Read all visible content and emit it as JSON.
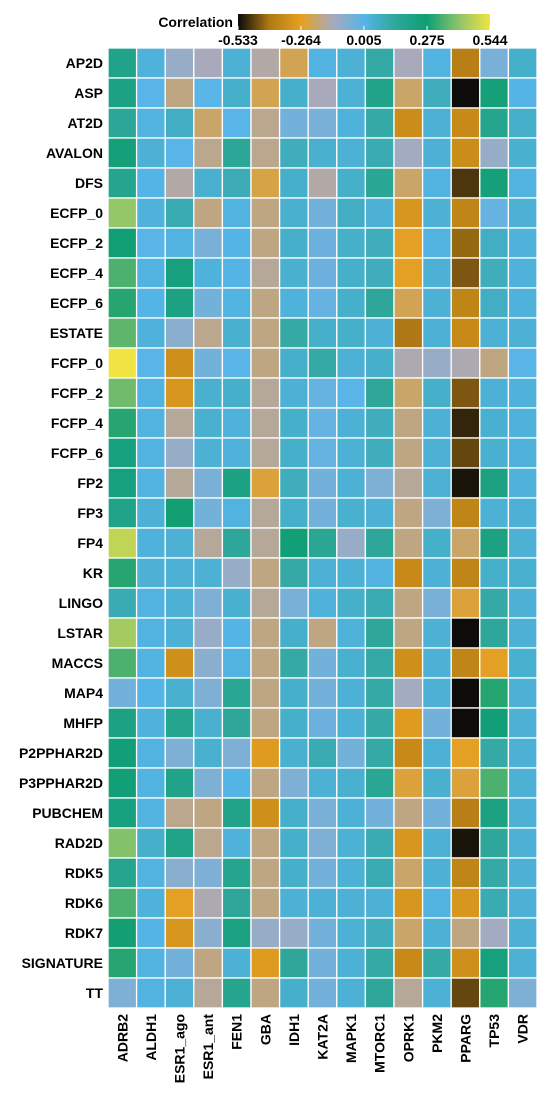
{
  "chart_data": {
    "type": "heatmap",
    "legend_title": "Correlation",
    "legend_ticks": [
      "-0.533",
      "-0.264",
      "0.005",
      "0.275",
      "0.544"
    ],
    "value_range": [
      -0.533,
      0.544
    ],
    "colorscale": [
      "#0a0a0a",
      "#b07a14",
      "#e6a020",
      "#a8aabd",
      "#56b4e9",
      "#2ea79a",
      "#0f9e73",
      "#8cc46a",
      "#f0e442"
    ],
    "rows": [
      "AP2D",
      "ASP",
      "AT2D",
      "AVALON",
      "DFS",
      "ECFP_0",
      "ECFP_2",
      "ECFP_4",
      "ECFP_6",
      "ESTATE",
      "FCFP_0",
      "FCFP_2",
      "FCFP_4",
      "FCFP_6",
      "FP2",
      "FP3",
      "FP4",
      "KR",
      "LINGO",
      "LSTAR",
      "MACCS",
      "MAP4",
      "MHFP",
      "P2PPHAR2D",
      "P3PPHAR2D",
      "PUBCHEM",
      "RAD2D",
      "RDK5",
      "RDK6",
      "RDK7",
      "SIGNATURE",
      "TT"
    ],
    "columns": [
      "ADRB2",
      "ALDH1",
      "ESR1_ago",
      "ESR1_ant",
      "FEN1",
      "GBA",
      "IDH1",
      "KAT2A",
      "MAPK1",
      "MTORC1",
      "OPRK1",
      "PKM2",
      "PPARG",
      "TP53",
      "VDR"
    ],
    "values": [
      [
        0.2,
        0.03,
        -0.1,
        -0.13,
        0.04,
        -0.15,
        -0.22,
        0.02,
        0.04,
        0.12,
        -0.13,
        0.02,
        -0.38,
        -0.05,
        0.06
      ],
      [
        0.22,
        0.0,
        -0.18,
        0.0,
        0.06,
        -0.22,
        0.06,
        -0.13,
        0.04,
        0.2,
        -0.2,
        0.08,
        -0.53,
        0.25,
        0.01
      ],
      [
        0.15,
        0.02,
        0.07,
        -0.2,
        0.0,
        -0.17,
        -0.04,
        -0.05,
        0.03,
        0.12,
        -0.33,
        0.04,
        -0.34,
        0.18,
        0.06
      ],
      [
        0.25,
        0.04,
        0.0,
        -0.17,
        0.15,
        -0.17,
        0.08,
        0.05,
        0.04,
        0.1,
        -0.12,
        0.04,
        -0.33,
        -0.1,
        0.05
      ],
      [
        0.18,
        0.01,
        -0.15,
        0.05,
        0.09,
        -0.23,
        0.06,
        -0.15,
        0.06,
        0.16,
        -0.2,
        0.02,
        -0.48,
        0.25,
        0.02
      ],
      [
        0.42,
        0.03,
        0.1,
        -0.18,
        0.02,
        -0.18,
        0.05,
        -0.04,
        0.07,
        0.04,
        -0.3,
        0.04,
        -0.36,
        -0.02,
        0.04
      ],
      [
        0.27,
        0.0,
        0.02,
        -0.05,
        0.01,
        -0.18,
        0.06,
        -0.03,
        0.06,
        0.08,
        -0.26,
        0.02,
        -0.42,
        0.07,
        0.03
      ],
      [
        0.34,
        0.02,
        0.24,
        0.03,
        0.01,
        -0.16,
        0.05,
        -0.03,
        0.06,
        0.08,
        -0.26,
        0.04,
        -0.44,
        0.08,
        0.03
      ],
      [
        0.3,
        0.01,
        0.22,
        -0.04,
        0.02,
        -0.18,
        0.03,
        -0.02,
        0.06,
        0.14,
        -0.22,
        0.04,
        -0.36,
        0.07,
        0.03
      ],
      [
        0.36,
        0.03,
        -0.08,
        -0.17,
        0.05,
        -0.18,
        0.12,
        0.06,
        0.06,
        0.04,
        -0.4,
        0.04,
        -0.34,
        0.04,
        0.04
      ],
      [
        0.544,
        0.0,
        -0.32,
        -0.04,
        0.0,
        -0.18,
        0.06,
        0.12,
        0.04,
        0.06,
        -0.14,
        -0.1,
        -0.14,
        -0.18,
        0.0
      ],
      [
        0.38,
        0.02,
        -0.3,
        0.05,
        0.06,
        -0.16,
        0.04,
        -0.02,
        0.0,
        0.14,
        -0.2,
        0.06,
        -0.44,
        0.04,
        0.03
      ],
      [
        0.3,
        0.02,
        -0.16,
        0.05,
        0.03,
        -0.16,
        0.06,
        -0.02,
        0.04,
        0.08,
        -0.18,
        0.04,
        -0.5,
        0.05,
        0.03
      ],
      [
        0.24,
        0.02,
        -0.1,
        0.04,
        0.03,
        -0.16,
        0.06,
        -0.02,
        0.04,
        0.08,
        -0.18,
        0.04,
        -0.46,
        0.05,
        0.03
      ],
      [
        0.24,
        0.02,
        -0.16,
        -0.05,
        0.22,
        -0.24,
        0.08,
        -0.04,
        0.04,
        -0.06,
        -0.16,
        0.04,
        -0.52,
        0.22,
        0.03
      ],
      [
        0.2,
        0.04,
        0.28,
        -0.04,
        0.02,
        -0.16,
        0.06,
        -0.04,
        0.05,
        0.04,
        -0.18,
        -0.06,
        -0.36,
        0.04,
        0.04
      ],
      [
        0.48,
        0.03,
        0.04,
        -0.16,
        0.14,
        -0.16,
        0.26,
        0.16,
        -0.1,
        0.14,
        -0.18,
        0.06,
        -0.2,
        0.22,
        0.04
      ],
      [
        0.3,
        0.04,
        0.04,
        0.04,
        -0.1,
        -0.18,
        0.12,
        0.04,
        0.04,
        0.02,
        -0.34,
        0.04,
        -0.36,
        0.06,
        0.05
      ],
      [
        0.1,
        0.02,
        0.04,
        -0.06,
        0.05,
        -0.16,
        -0.05,
        0.03,
        0.06,
        0.1,
        -0.18,
        -0.05,
        -0.24,
        0.12,
        0.04
      ],
      [
        0.44,
        0.02,
        0.04,
        -0.1,
        0.01,
        -0.18,
        0.06,
        -0.18,
        0.03,
        0.14,
        -0.18,
        0.04,
        -0.53,
        0.14,
        0.04
      ],
      [
        0.34,
        0.02,
        -0.32,
        -0.08,
        0.02,
        -0.18,
        0.12,
        -0.04,
        0.05,
        0.12,
        -0.32,
        0.04,
        -0.36,
        -0.26,
        0.05
      ],
      [
        -0.04,
        0.01,
        0.05,
        -0.06,
        0.16,
        -0.18,
        0.06,
        -0.04,
        0.04,
        0.12,
        -0.12,
        0.04,
        -0.53,
        0.3,
        0.04
      ],
      [
        0.22,
        0.03,
        0.18,
        0.05,
        0.14,
        -0.18,
        0.06,
        -0.03,
        0.04,
        0.12,
        -0.28,
        -0.04,
        -0.53,
        0.26,
        0.04
      ],
      [
        0.26,
        0.02,
        -0.06,
        0.05,
        -0.06,
        -0.28,
        0.05,
        0.1,
        -0.04,
        0.12,
        -0.34,
        0.04,
        -0.26,
        0.12,
        0.04
      ],
      [
        0.26,
        0.02,
        0.2,
        -0.06,
        0.01,
        -0.18,
        -0.06,
        0.04,
        0.05,
        0.16,
        -0.24,
        0.05,
        -0.24,
        0.34,
        0.04
      ],
      [
        0.24,
        0.02,
        -0.17,
        -0.18,
        0.2,
        -0.32,
        0.06,
        -0.05,
        0.04,
        -0.04,
        -0.18,
        -0.04,
        -0.38,
        0.22,
        0.04
      ],
      [
        0.4,
        0.06,
        0.2,
        -0.17,
        0.03,
        -0.18,
        0.06,
        -0.06,
        0.04,
        0.1,
        -0.3,
        0.04,
        -0.52,
        0.14,
        0.04
      ],
      [
        0.18,
        0.02,
        -0.08,
        -0.06,
        0.18,
        -0.18,
        0.06,
        -0.04,
        0.04,
        0.1,
        -0.2,
        0.04,
        -0.36,
        0.12,
        0.04
      ],
      [
        0.34,
        0.03,
        -0.26,
        -0.14,
        0.14,
        -0.18,
        0.04,
        0.04,
        0.04,
        0.04,
        -0.3,
        0.02,
        -0.3,
        0.1,
        0.04
      ],
      [
        0.28,
        0.01,
        -0.3,
        -0.08,
        0.22,
        -0.1,
        -0.1,
        -0.04,
        0.04,
        0.08,
        -0.2,
        0.04,
        -0.18,
        -0.12,
        0.04
      ],
      [
        0.3,
        0.02,
        -0.04,
        -0.18,
        0.04,
        -0.28,
        0.14,
        -0.04,
        0.04,
        0.12,
        -0.34,
        0.12,
        -0.32,
        0.24,
        0.04
      ],
      [
        -0.06,
        0.02,
        0.04,
        -0.16,
        0.18,
        -0.18,
        0.06,
        -0.04,
        0.04,
        0.14,
        -0.16,
        0.04,
        -0.46,
        0.3,
        -0.06
      ]
    ],
    "grid": true,
    "legend_placement": "top"
  }
}
